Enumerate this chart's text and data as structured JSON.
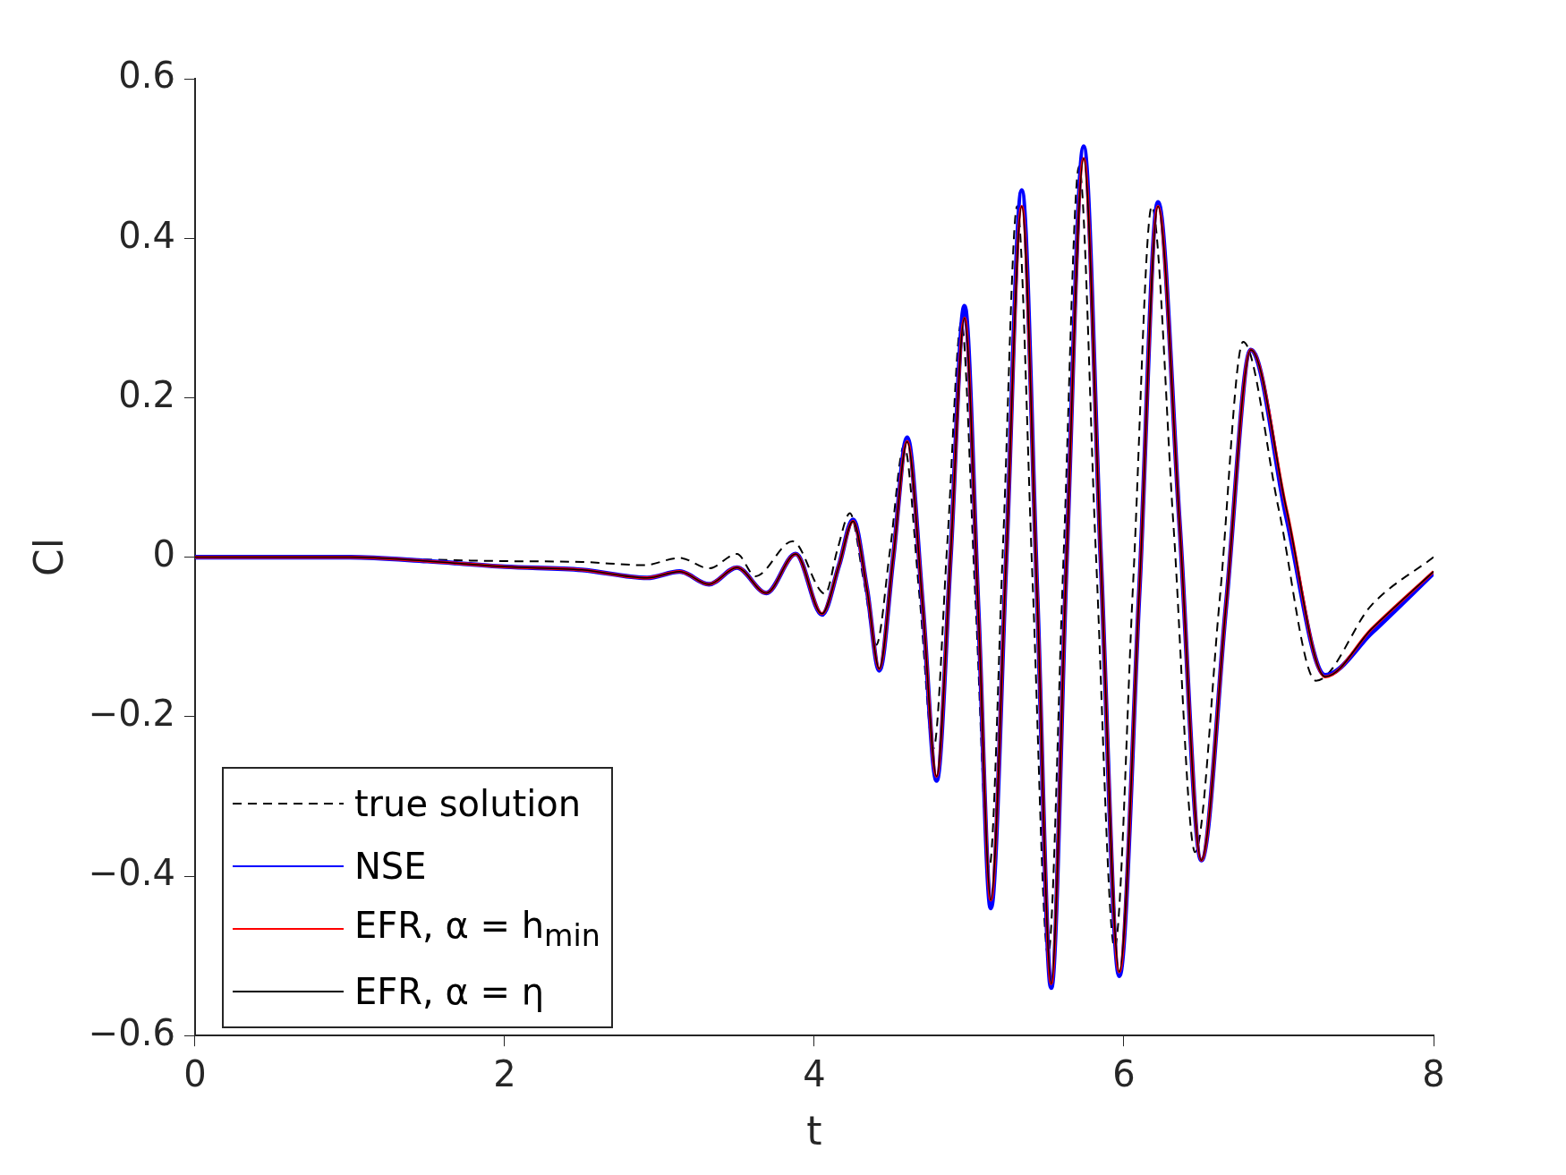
{
  "chart_data": {
    "type": "line",
    "xlabel": "t",
    "ylabel": "Cl",
    "xlim": [
      0,
      8
    ],
    "xticks": [
      0,
      2,
      4,
      6,
      8
    ],
    "ylim": [
      -0.6,
      0.6
    ],
    "yticks": [
      {
        "value": -0.6,
        "label": "−0.6"
      },
      {
        "value": -0.4,
        "label": "−0.4"
      },
      {
        "value": -0.2,
        "label": "−0.2"
      },
      0,
      0.2,
      0.4,
      0.6
    ],
    "grid": false,
    "legend": "bottom left",
    "marker": "none",
    "series": [
      {
        "name": "true solution",
        "color": "#000000",
        "line_style": "dashed",
        "x": [
          0,
          0.5,
          1,
          1.5,
          2,
          2.5,
          2.9,
          3.13,
          3.32,
          3.5,
          3.62,
          3.86,
          4.07,
          4.15,
          4.23,
          4.32,
          4.4,
          4.49,
          4.58,
          4.68,
          4.77,
          4.86,
          4.95,
          5.04,
          5.13,
          5.22,
          5.31,
          5.41,
          5.51,
          5.61,
          5.71,
          5.82,
          5.94,
          6.06,
          6.18,
          6.32,
          6.46,
          6.62,
          6.77,
          7.0,
          7.24,
          7.6,
          8
        ],
        "values": [
          0,
          0,
          0,
          -0.003,
          -0.005,
          -0.006,
          -0.01,
          -0.001,
          -0.014,
          0.004,
          -0.024,
          0.02,
          -0.046,
          0.01,
          0.055,
          -0.03,
          -0.11,
          0.01,
          0.14,
          -0.05,
          -0.24,
          0.02,
          0.295,
          -0.05,
          -0.39,
          0.02,
          0.44,
          -0.03,
          -0.5,
          0.0,
          0.49,
          0.0,
          -0.49,
          -0.03,
          0.44,
          0.04,
          -0.37,
          -0.05,
          0.27,
          0.06,
          -0.155,
          -0.06,
          0
        ]
      },
      {
        "name": "NSE",
        "color": "#0000ff",
        "line_style": "solid",
        "x": [
          0,
          0.5,
          1,
          1.5,
          2,
          2.5,
          2.92,
          3.13,
          3.32,
          3.5,
          3.69,
          3.88,
          4.05,
          4.16,
          4.25,
          4.34,
          4.42,
          4.51,
          4.6,
          4.7,
          4.79,
          4.88,
          4.97,
          5.06,
          5.14,
          5.24,
          5.34,
          5.44,
          5.53,
          5.63,
          5.74,
          5.85,
          5.97,
          6.1,
          6.22,
          6.36,
          6.5,
          6.66,
          6.82,
          7.05,
          7.3,
          7.6,
          8
        ],
        "values": [
          0,
          0,
          0,
          -0.005,
          -0.012,
          -0.016,
          -0.026,
          -0.018,
          -0.034,
          -0.013,
          -0.045,
          0.004,
          -0.072,
          -0.01,
          0.047,
          -0.04,
          -0.142,
          0.0,
          0.15,
          -0.06,
          -0.28,
          0.0,
          0.315,
          -0.07,
          -0.44,
          0.0,
          0.46,
          -0.05,
          -0.54,
          0.0,
          0.515,
          0.0,
          -0.525,
          -0.04,
          0.445,
          0.04,
          -0.38,
          -0.06,
          0.26,
          0.05,
          -0.148,
          -0.095,
          -0.02
        ]
      },
      {
        "name": "EFR, α = h$_{min}$",
        "color": "#ff0000",
        "line_style": "solid",
        "x": [
          0,
          0.5,
          1,
          1.5,
          2,
          2.5,
          2.92,
          3.13,
          3.32,
          3.5,
          3.69,
          3.88,
          4.05,
          4.16,
          4.25,
          4.34,
          4.42,
          4.51,
          4.6,
          4.7,
          4.79,
          4.88,
          4.97,
          5.06,
          5.14,
          5.24,
          5.34,
          5.44,
          5.53,
          5.63,
          5.74,
          5.85,
          5.97,
          6.1,
          6.22,
          6.36,
          6.5,
          6.66,
          6.82,
          7.05,
          7.3,
          7.6,
          8
        ],
        "values": [
          0,
          0,
          0,
          -0.005,
          -0.012,
          -0.016,
          -0.026,
          -0.018,
          -0.034,
          -0.013,
          -0.045,
          0.004,
          -0.071,
          -0.01,
          0.045,
          -0.04,
          -0.14,
          0.0,
          0.145,
          -0.06,
          -0.275,
          0.0,
          0.3,
          -0.07,
          -0.43,
          0.0,
          0.44,
          -0.05,
          -0.535,
          0.0,
          0.5,
          0.0,
          -0.52,
          -0.04,
          0.44,
          0.04,
          -0.38,
          -0.06,
          0.26,
          0.06,
          -0.15,
          -0.09,
          -0.018
        ]
      },
      {
        "name": "EFR, α = η",
        "color": "#000000",
        "line_style": "solid",
        "x": [
          0,
          0.5,
          1,
          1.5,
          2,
          2.5,
          2.92,
          3.13,
          3.32,
          3.5,
          3.69,
          3.88,
          4.05,
          4.16,
          4.25,
          4.34,
          4.42,
          4.51,
          4.6,
          4.7,
          4.79,
          4.88,
          4.97,
          5.06,
          5.14,
          5.24,
          5.34,
          5.44,
          5.53,
          5.63,
          5.74,
          5.85,
          5.97,
          6.1,
          6.22,
          6.36,
          6.5,
          6.66,
          6.82,
          7.05,
          7.3,
          7.6,
          8
        ],
        "values": [
          0,
          0,
          0,
          -0.005,
          -0.012,
          -0.016,
          -0.026,
          -0.018,
          -0.034,
          -0.013,
          -0.045,
          0.004,
          -0.071,
          -0.01,
          0.045,
          -0.04,
          -0.14,
          0.0,
          0.145,
          -0.06,
          -0.275,
          0.0,
          0.3,
          -0.07,
          -0.43,
          0.0,
          0.44,
          -0.05,
          -0.535,
          0.0,
          0.5,
          0.0,
          -0.52,
          -0.04,
          0.44,
          0.04,
          -0.38,
          -0.06,
          0.26,
          0.06,
          -0.15,
          -0.09,
          -0.018
        ]
      }
    ]
  }
}
